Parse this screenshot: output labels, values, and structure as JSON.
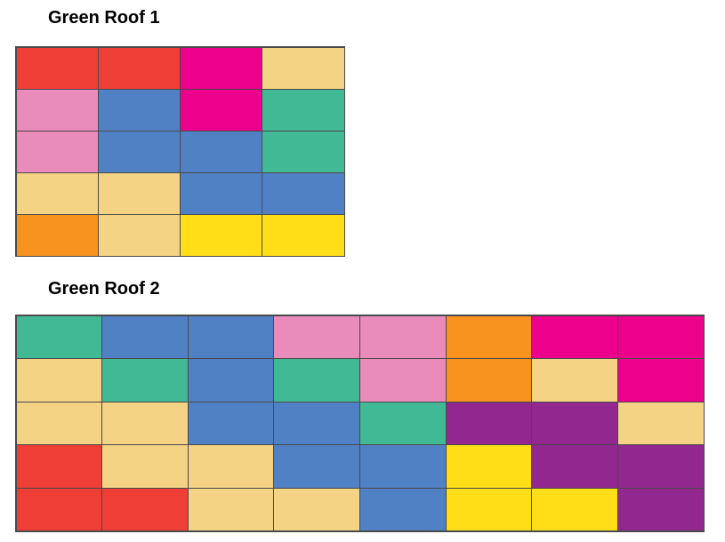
{
  "palette": {
    "red": "#ef3e36",
    "magenta": "#ec008c",
    "tan": "#f5d384",
    "pink": "#e98bbb",
    "blue": "#5081c4",
    "teal": "#41b994",
    "orange": "#f7931e",
    "yellow": "#ffde17",
    "purple": "#92278f"
  },
  "roofs": [
    {
      "title": "Green Roof 1",
      "rows": [
        [
          "red",
          "red",
          "magenta",
          "tan"
        ],
        [
          "pink",
          "blue",
          "magenta",
          "teal"
        ],
        [
          "pink",
          "blue",
          "blue",
          "teal"
        ],
        [
          "tan",
          "tan",
          "blue",
          "blue"
        ],
        [
          "orange",
          "tan",
          "yellow",
          "yellow"
        ]
      ]
    },
    {
      "title": "Green Roof 2",
      "rows": [
        [
          "teal",
          "blue",
          "blue",
          "pink",
          "pink",
          "orange",
          "magenta",
          "magenta"
        ],
        [
          "tan",
          "teal",
          "blue",
          "teal",
          "pink",
          "orange",
          "tan",
          "magenta"
        ],
        [
          "tan",
          "tan",
          "blue",
          "blue",
          "teal",
          "purple",
          "purple",
          "tan"
        ],
        [
          "red",
          "tan",
          "tan",
          "blue",
          "blue",
          "yellow",
          "purple",
          "purple"
        ],
        [
          "red",
          "red",
          "tan",
          "tan",
          "blue",
          "yellow",
          "yellow",
          "purple"
        ]
      ]
    }
  ]
}
